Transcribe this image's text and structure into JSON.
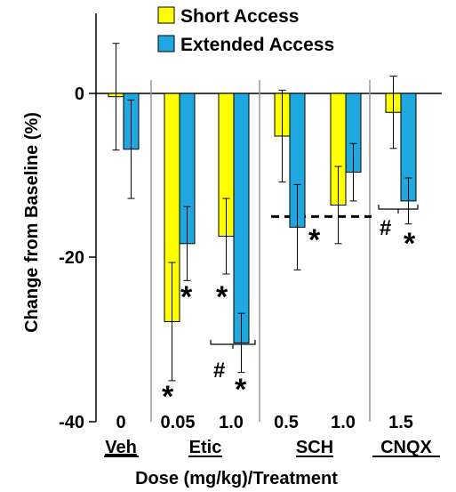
{
  "chart_data": {
    "type": "bar",
    "title": "",
    "xlabel": "Dose (mg/kg)/Treatment",
    "ylabel": "Change from Baseline (%)",
    "ylim": [
      -40,
      10
    ],
    "yticks": [
      0,
      -20,
      -40
    ],
    "grid": false,
    "legend_position": "top-center",
    "categories": [
      "0",
      "0.05",
      "1.0",
      "0.5",
      "1.0",
      "1.5"
    ],
    "groups": [
      {
        "label": "Veh",
        "categories": [
          "0"
        ]
      },
      {
        "label": "Etic",
        "categories": [
          "0.05",
          "1.0"
        ]
      },
      {
        "label": "SCH",
        "categories": [
          "0.5",
          "1.0"
        ]
      },
      {
        "label": "CNQX",
        "categories": [
          "1.5"
        ]
      }
    ],
    "series": [
      {
        "name": "Short Access",
        "color": "#ffff00",
        "values": [
          -0.4,
          -27.8,
          -17.4,
          -5.2,
          -13.6,
          -2.3
        ],
        "error": [
          6.5,
          7.2,
          4.6,
          5.6,
          4.7,
          4.4
        ]
      },
      {
        "name": "Extended Access",
        "color": "#1fa7e0",
        "values": [
          -6.8,
          -18.3,
          -30.4,
          -16.3,
          -9.6,
          -13.1
        ],
        "error": [
          6.0,
          4.5,
          3.6,
          5.2,
          3.5,
          2.8
        ]
      }
    ],
    "reference_line": {
      "y": -15,
      "style": "dashed"
    },
    "annotations": {
      "star": "*",
      "hash": "#"
    }
  }
}
